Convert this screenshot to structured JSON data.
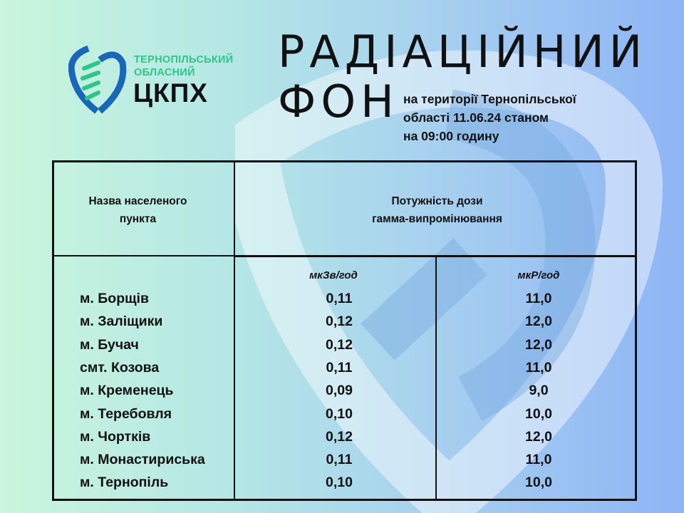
{
  "organization": {
    "line1": "ТЕРНОПІЛЬСЬКИЙ",
    "line2": "ОБЛАСНИЙ",
    "abbr": "ЦКПХ"
  },
  "title": {
    "line1": "РАДІАЦІЙНИЙ",
    "line2": "ФОН"
  },
  "subtitle": [
    "на території Тернопільської",
    "області 11.06.24 станом",
    "на 09:00 годину"
  ],
  "table": {
    "header_name": [
      "Назва населеного",
      "пункта"
    ],
    "header_dose": [
      "Потужність дози",
      "гамма-випромінювання"
    ],
    "unit1": "мкЗв/год",
    "unit2": "мкР/год",
    "rows": [
      {
        "name": "м. Борщів",
        "usv": "0,11",
        "ur": "11,0"
      },
      {
        "name": "м. Заліщики",
        "usv": "0,12",
        "ur": "12,0"
      },
      {
        "name": "м. Бучач",
        "usv": "0,12",
        "ur": "12,0"
      },
      {
        "name": "смт.  Козова",
        "usv": "0,11",
        "ur": "11,0"
      },
      {
        "name": "м. Кременець",
        "usv": "0,09",
        "ur": "9,0"
      },
      {
        "name": "м. Теребовля",
        "usv": "0,10",
        "ur": "10,0"
      },
      {
        "name": "м. Чортків",
        "usv": "0,12",
        "ur": "12,0"
      },
      {
        "name": "м. Монастириська",
        "usv": "0,11",
        "ur": "11,0"
      },
      {
        "name": "м. Тернопіль",
        "usv": "0,10",
        "ur": "10,0"
      }
    ]
  },
  "colors": {
    "logo_green": "#2fc48a",
    "logo_blue": "#1560b8"
  }
}
